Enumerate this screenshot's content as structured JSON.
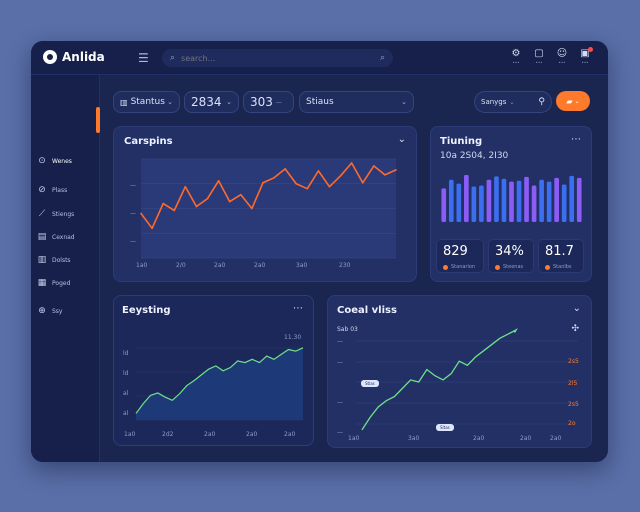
{
  "app": {
    "title": "Anlida"
  },
  "header": {
    "search_placeholder": "search...",
    "icons": [
      {
        "name": "user-settings-icon",
        "glyph": "⚙",
        "caption": "•••"
      },
      {
        "name": "messages-icon",
        "glyph": "▢",
        "caption": "•••"
      },
      {
        "name": "profile-icon",
        "glyph": "☺",
        "caption": "•••"
      },
      {
        "name": "notifications-icon",
        "glyph": "▣",
        "caption": "•••"
      }
    ]
  },
  "sidebar": {
    "items": [
      {
        "label": "Wenes",
        "glyph": "⊙"
      },
      {
        "label": "Plass",
        "glyph": "⊘"
      },
      {
        "label": "Stiengs",
        "glyph": "⟋"
      },
      {
        "label": "Cexnad",
        "glyph": "▤"
      },
      {
        "label": "Dolsts",
        "glyph": "▥"
      },
      {
        "label": "Poged",
        "glyph": "▦"
      },
      {
        "label": "Ssy",
        "glyph": "⊕"
      }
    ]
  },
  "filters": {
    "status": {
      "label": "Stantus",
      "glyph": "▥"
    },
    "year": {
      "label": "2834"
    },
    "value": {
      "label": "303",
      "suffix": "—"
    },
    "mode": {
      "label": "Stiaus"
    },
    "right_dropdown": {
      "label": "Sanygs"
    }
  },
  "cards": {
    "earnings": {
      "title": "Carspins",
      "y_ticks": [
        "—",
        "—",
        "—"
      ],
      "x_ticks": [
        "1a0",
        "2/0",
        "2a0",
        "2a0",
        "3a0",
        "230"
      ]
    },
    "trending": {
      "title": "Tiuning",
      "subtitle": "10a 2S04, 2I30",
      "stats": [
        {
          "value": "829",
          "caption": "Stanarion"
        },
        {
          "value": "34%",
          "caption": "Steenas"
        },
        {
          "value": "81.7",
          "caption": "Stanlbs"
        }
      ]
    },
    "everything": {
      "title": "Eeysting",
      "top_label": "11.30",
      "y_ticks": [
        "ld",
        "ld",
        "al",
        "al"
      ],
      "x_ticks": [
        "1a0",
        "2d2",
        "2a0",
        "2a0",
        "2a0"
      ]
    },
    "goals": {
      "title": "Coeal vliss",
      "subtitle": "Sab 03",
      "y_ticks": [
        "—",
        "—",
        "—",
        "—"
      ],
      "right_ticks": [
        "2s5",
        "2l5",
        "2s5",
        "2o"
      ],
      "x_ticks": [
        "1a0",
        "3a0",
        "2a0",
        "2a0",
        "2a0"
      ],
      "tags": [
        "Stlas",
        "Sltas"
      ]
    }
  },
  "chart_data": [
    {
      "type": "line",
      "title": "Carspins",
      "x": [
        0,
        1,
        2,
        3,
        4,
        5,
        6,
        7,
        8,
        9,
        10,
        11,
        12,
        13,
        14,
        15,
        16,
        17,
        18,
        19,
        20,
        21,
        22,
        23
      ],
      "values": [
        45,
        30,
        55,
        48,
        72,
        52,
        60,
        78,
        57,
        64,
        50,
        76,
        81,
        90,
        75,
        70,
        88,
        72,
        83,
        96,
        76,
        93,
        84,
        89
      ],
      "ylim": [
        0,
        100
      ],
      "grid": true
    },
    {
      "type": "bar",
      "title": "Tiuning",
      "series": [
        {
          "name": "",
          "values": [
            70,
            88,
            80,
            98,
            74,
            76,
            88,
            95,
            90,
            84,
            86,
            94,
            76,
            88,
            84,
            92,
            78,
            96,
            92
          ]
        }
      ],
      "ylim": [
        0,
        100
      ]
    },
    {
      "type": "area",
      "title": "Eeysting",
      "x": [
        0,
        1,
        2,
        3,
        4,
        5,
        6,
        7,
        8,
        9,
        10,
        11,
        12,
        13,
        14,
        15,
        16,
        17,
        18,
        19,
        20,
        21,
        22,
        23
      ],
      "values": [
        8,
        20,
        30,
        33,
        28,
        24,
        32,
        42,
        48,
        55,
        62,
        66,
        60,
        64,
        72,
        70,
        74,
        70,
        78,
        74,
        80,
        86,
        84,
        88
      ],
      "ylim": [
        0,
        100
      ],
      "grid": true
    },
    {
      "type": "line",
      "title": "Coeal vliss",
      "x": [
        0,
        1,
        2,
        3,
        4,
        5,
        6,
        7,
        8,
        9,
        10,
        11,
        12,
        13,
        14,
        15,
        16,
        17,
        18,
        19
      ],
      "values": [
        4,
        16,
        26,
        32,
        36,
        44,
        52,
        50,
        62,
        56,
        52,
        58,
        70,
        66,
        74,
        80,
        86,
        92,
        96,
        100
      ],
      "ylim": [
        0,
        100
      ],
      "grid": true
    }
  ],
  "colors": {
    "accent": "#ff7a2a",
    "line_orange": "#ff6a2a",
    "line_green": "#6ee28a",
    "bar_blue": "#3b6ff0",
    "bar_purple": "#8b5cf6"
  }
}
